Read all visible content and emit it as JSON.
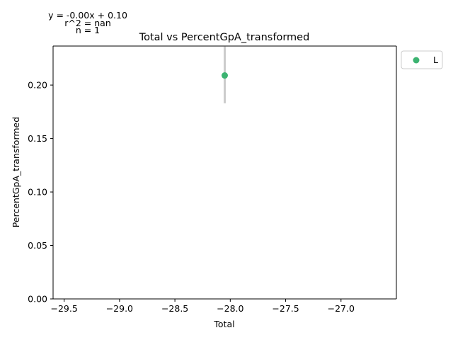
{
  "chart_data": {
    "type": "scatter",
    "title": "Total vs PercentGpA_transformed",
    "xlabel": "Total",
    "ylabel": "PercentGpA_transformed",
    "xlim": [
      -29.6,
      -26.5
    ],
    "ylim": [
      0.0,
      0.2365
    ],
    "xticks": [
      -29.5,
      -29.0,
      -28.5,
      -28.0,
      -27.5,
      -27.0
    ],
    "xtick_labels": [
      "−29.5",
      "−29.0",
      "−28.5",
      "−28.0",
      "−27.5",
      "−27.0"
    ],
    "yticks": [
      0.0,
      0.05,
      0.1,
      0.15,
      0.2
    ],
    "ytick_labels": [
      "0.00",
      "0.05",
      "0.10",
      "0.15",
      "0.20"
    ],
    "series": [
      {
        "name": "L",
        "color": "#3cb371",
        "points": [
          {
            "x": -28.05,
            "y": 0.209,
            "error_low": 0.183,
            "error_high": 0.236
          }
        ]
      }
    ],
    "errorbar_color": "#cccccc",
    "annotations": {
      "equation": "y = -0.00x + 0.10",
      "r2": "r^2 = nan",
      "n": "n = 1"
    },
    "grid": false,
    "legend_placement": "outside-right-top"
  }
}
